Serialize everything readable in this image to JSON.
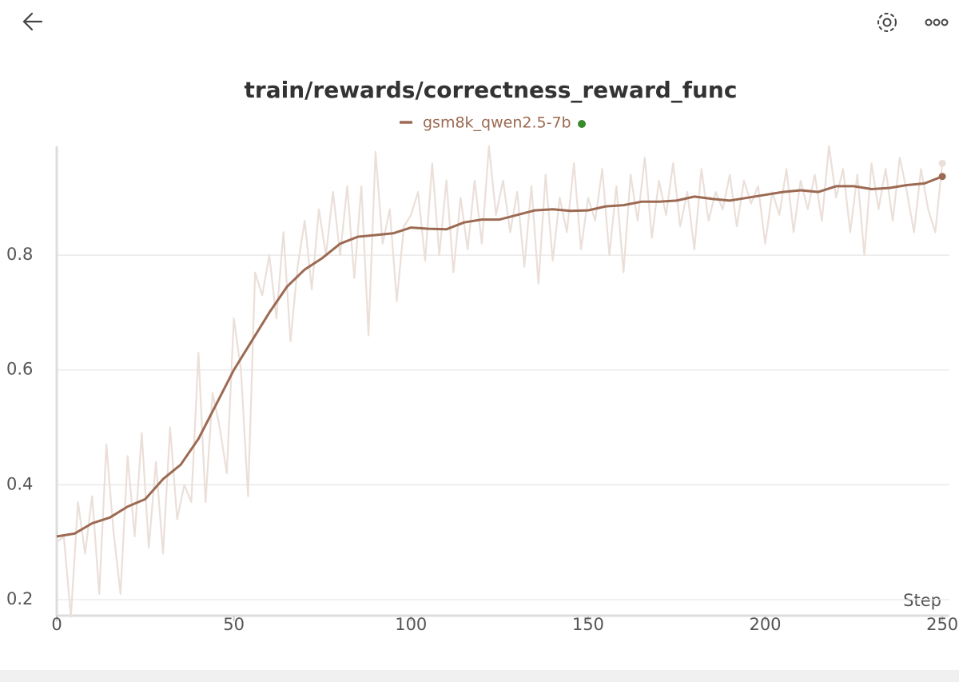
{
  "chart_data": {
    "type": "line",
    "title": "train/rewards/correctness_reward_func",
    "xlabel": "Step",
    "xlim": [
      0,
      252
    ],
    "xticks": [
      0,
      50,
      100,
      150,
      200,
      250
    ],
    "ylim": [
      0.17,
      1.0
    ],
    "yticks": [
      0.2,
      0.4,
      0.6,
      0.8
    ],
    "grid": true,
    "series": [
      {
        "name": "gsm8k_qwen2.5-7b",
        "color": "#9c6a52",
        "x": [
          0,
          5,
          10,
          15,
          20,
          25,
          30,
          35,
          40,
          45,
          50,
          55,
          60,
          65,
          70,
          75,
          80,
          85,
          90,
          95,
          100,
          105,
          110,
          115,
          120,
          125,
          130,
          135,
          140,
          145,
          150,
          155,
          160,
          165,
          170,
          175,
          180,
          185,
          190,
          195,
          200,
          205,
          210,
          215,
          220,
          225,
          230,
          235,
          240,
          245,
          250
        ],
        "values": [
          0.31,
          0.315,
          0.333,
          0.343,
          0.362,
          0.375,
          0.41,
          0.435,
          0.48,
          0.54,
          0.6,
          0.65,
          0.7,
          0.745,
          0.775,
          0.795,
          0.82,
          0.832,
          0.835,
          0.838,
          0.848,
          0.846,
          0.845,
          0.857,
          0.862,
          0.862,
          0.87,
          0.878,
          0.88,
          0.877,
          0.878,
          0.885,
          0.887,
          0.893,
          0.893,
          0.895,
          0.902,
          0.898,
          0.895,
          0.9,
          0.905,
          0.91,
          0.913,
          0.91,
          0.92,
          0.92,
          0.915,
          0.917,
          0.922,
          0.925,
          0.937
        ]
      },
      {
        "color": "#ebdfd9",
        "x": [
          0,
          2,
          4,
          6,
          8,
          10,
          12,
          14,
          16,
          18,
          20,
          22,
          24,
          26,
          28,
          30,
          32,
          34,
          36,
          38,
          40,
          42,
          44,
          46,
          48,
          50,
          52,
          54,
          56,
          58,
          60,
          62,
          64,
          66,
          68,
          70,
          72,
          74,
          76,
          78,
          80,
          82,
          84,
          86,
          88,
          90,
          92,
          94,
          96,
          98,
          100,
          102,
          104,
          106,
          108,
          110,
          112,
          114,
          116,
          118,
          120,
          122,
          124,
          126,
          128,
          130,
          132,
          134,
          136,
          138,
          140,
          142,
          144,
          146,
          148,
          150,
          152,
          154,
          156,
          158,
          160,
          162,
          164,
          166,
          168,
          170,
          172,
          174,
          176,
          178,
          180,
          182,
          184,
          186,
          188,
          190,
          192,
          194,
          196,
          198,
          200,
          202,
          204,
          206,
          208,
          210,
          212,
          214,
          216,
          218,
          220,
          222,
          224,
          226,
          228,
          230,
          232,
          234,
          236,
          238,
          240,
          242,
          244,
          246,
          248,
          250
        ],
        "values": [
          0.3,
          0.31,
          0.17,
          0.37,
          0.28,
          0.38,
          0.21,
          0.47,
          0.32,
          0.21,
          0.45,
          0.31,
          0.49,
          0.29,
          0.44,
          0.28,
          0.5,
          0.34,
          0.4,
          0.37,
          0.63,
          0.37,
          0.56,
          0.5,
          0.42,
          0.69,
          0.6,
          0.38,
          0.77,
          0.73,
          0.8,
          0.69,
          0.84,
          0.65,
          0.78,
          0.86,
          0.74,
          0.88,
          0.8,
          0.91,
          0.8,
          0.92,
          0.76,
          0.92,
          0.66,
          0.98,
          0.82,
          0.88,
          0.72,
          0.85,
          0.87,
          0.91,
          0.79,
          0.96,
          0.8,
          0.93,
          0.77,
          0.9,
          0.81,
          0.93,
          0.82,
          0.99,
          0.87,
          0.93,
          0.84,
          0.91,
          0.78,
          0.92,
          0.75,
          0.94,
          0.79,
          0.9,
          0.84,
          0.96,
          0.81,
          0.9,
          0.86,
          0.95,
          0.8,
          0.92,
          0.77,
          0.94,
          0.86,
          0.97,
          0.83,
          0.93,
          0.87,
          0.96,
          0.85,
          0.91,
          0.81,
          0.95,
          0.86,
          0.91,
          0.88,
          0.94,
          0.85,
          0.93,
          0.89,
          0.92,
          0.82,
          0.91,
          0.87,
          0.95,
          0.84,
          0.93,
          0.88,
          0.94,
          0.86,
          0.99,
          0.9,
          0.95,
          0.84,
          0.94,
          0.8,
          0.96,
          0.88,
          0.95,
          0.86,
          0.97,
          0.91,
          0.84,
          0.95,
          0.88,
          0.84,
          0.96
        ]
      }
    ]
  }
}
